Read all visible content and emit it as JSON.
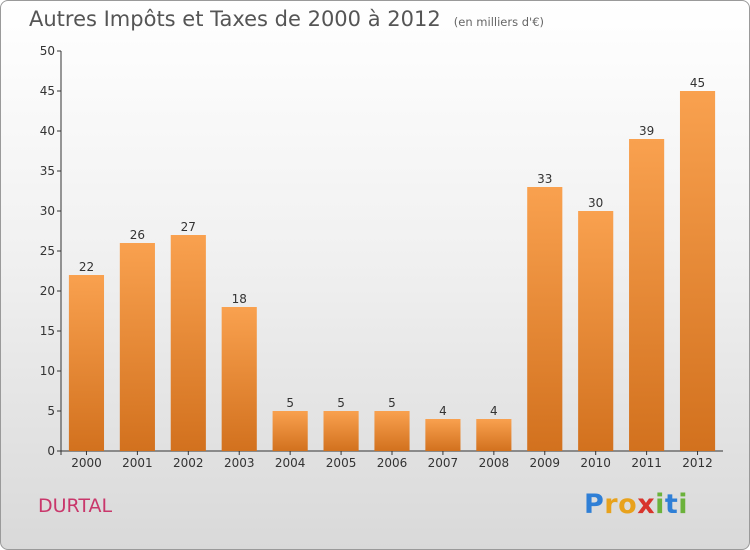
{
  "chart_data": {
    "type": "bar",
    "title": "Autres Impôts et Taxes de 2000 à 2012",
    "subtitle": "(en milliers d'€)",
    "categories": [
      "2000",
      "2001",
      "2002",
      "2003",
      "2004",
      "2005",
      "2006",
      "2007",
      "2008",
      "2009",
      "2010",
      "2011",
      "2012"
    ],
    "values": [
      22,
      26,
      27,
      18,
      5,
      5,
      5,
      4,
      4,
      33,
      30,
      39,
      45
    ],
    "ylim": [
      0,
      50
    ],
    "yticks": [
      0,
      5,
      10,
      15,
      20,
      25,
      30,
      35,
      40,
      45,
      50
    ],
    "grid": false,
    "bar_color_top": "#f9a14f",
    "bar_color_bottom": "#d2711e"
  },
  "footer": {
    "town": "DURTAL",
    "logo_letters": [
      "P",
      "r",
      "o",
      "x",
      "i",
      "t",
      "i"
    ],
    "logo_colors": [
      "#2f7fd6",
      "#e8a21c",
      "#e8a21c",
      "#d8342c",
      "#6bb23b",
      "#2f7fd6",
      "#6bb23b"
    ]
  }
}
